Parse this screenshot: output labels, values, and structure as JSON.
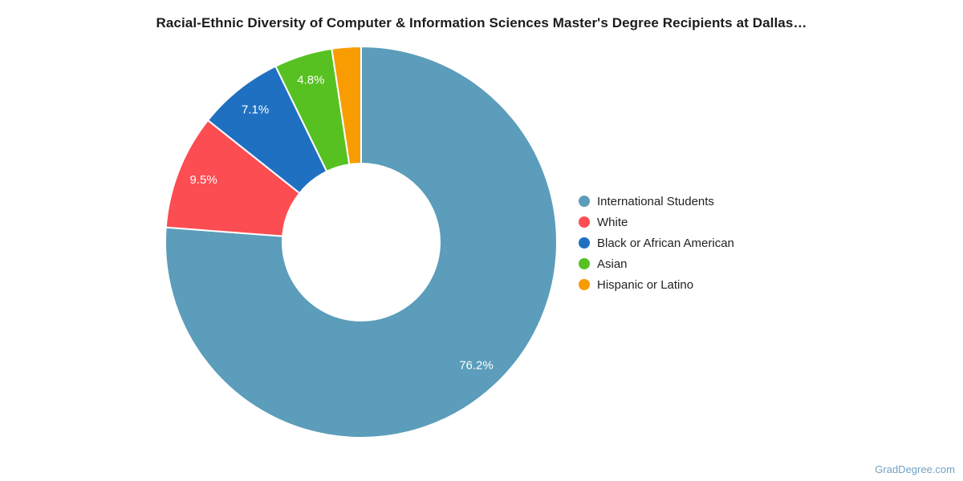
{
  "page": {
    "watermark": "GradDegree.com",
    "background_color": "#ffffff"
  },
  "chart_data": {
    "type": "pie",
    "subtype": "donut",
    "title": "Racial-Ethnic Diversity of Computer & Information Sciences Master's Degree Recipients at Dallas…",
    "categories": [
      "International Students",
      "White",
      "Black or African American",
      "Asian",
      "Hispanic or Latino"
    ],
    "values": [
      76.2,
      9.5,
      7.1,
      4.8,
      2.4
    ],
    "data_labels": [
      "76.2%",
      "9.5%",
      "7.1%",
      "4.8%",
      ""
    ],
    "colors": [
      "#5B9DBA",
      "#FB4D52",
      "#2070C2",
      "#57C122",
      "#F89C02"
    ],
    "data_label_color": "#ffffff",
    "legend_position": "right",
    "legend_text_color": "#222222",
    "donut_hole_ratio": 0.4,
    "start_angle_deg": 0,
    "direction": "clockwise",
    "total": 100
  }
}
